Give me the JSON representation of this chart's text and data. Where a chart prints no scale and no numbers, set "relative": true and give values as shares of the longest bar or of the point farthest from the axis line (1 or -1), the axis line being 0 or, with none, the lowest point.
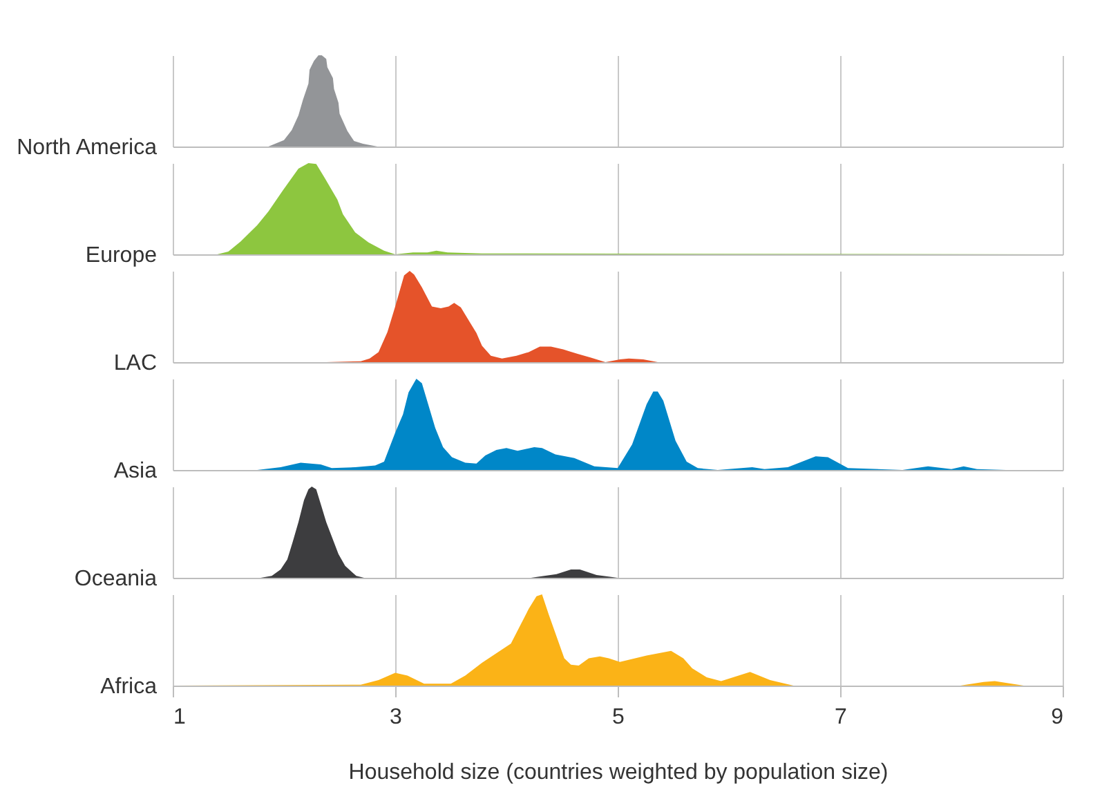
{
  "chart_data": [
    {
      "type": "area",
      "ylabel": "North America",
      "relative": true,
      "xlim": [
        1,
        9
      ],
      "xticks": [
        1,
        3,
        5,
        7,
        9
      ],
      "grid": "x",
      "tick_labels": false,
      "series": [
        {
          "color": "#939598",
          "x": [
            1.86,
            2.0,
            2.07,
            2.13,
            2.17,
            2.22,
            2.23,
            2.27,
            2.31,
            2.34,
            2.38,
            2.39,
            2.44,
            2.45,
            2.49,
            2.5,
            2.57,
            2.63,
            2.71,
            2.84
          ],
          "values": [
            0,
            0.07,
            0.18,
            0.34,
            0.51,
            0.69,
            0.84,
            0.94,
            1,
            1,
            0.96,
            0.87,
            0.75,
            0.63,
            0.48,
            0.36,
            0.17,
            0.06,
            0.03,
            0
          ]
        }
      ]
    },
    {
      "type": "area",
      "ylabel": "Europe",
      "relative": true,
      "xlim": [
        1,
        9
      ],
      "xticks": [
        1,
        3,
        5,
        7,
        9
      ],
      "grid": "x",
      "tick_labels": false,
      "series": [
        {
          "color": "#8dc63f",
          "x": [
            1.4,
            1.5,
            1.61,
            1.76,
            1.86,
            1.99,
            2.13,
            2.22,
            2.29,
            2.37,
            2.48,
            2.53,
            2.64,
            2.76,
            2.9,
            3.0,
            3.16,
            3.29,
            3.37,
            3.47,
            3.78,
            9.0
          ],
          "values": [
            0,
            0.03,
            0.14,
            0.32,
            0.47,
            0.7,
            0.94,
            1,
            0.99,
            0.83,
            0.6,
            0.44,
            0.24,
            0.13,
            0.04,
            0,
            0.02,
            0.02,
            0.04,
            0.02,
            0.01,
            0
          ]
        }
      ]
    },
    {
      "type": "area",
      "ylabel": "LAC",
      "relative": true,
      "xlim": [
        1,
        9
      ],
      "xticks": [
        1,
        3,
        5,
        7,
        9
      ],
      "grid": "x",
      "tick_labels": false,
      "series": [
        {
          "color": "#e5532a",
          "x": [
            2.38,
            2.69,
            2.77,
            2.85,
            2.93,
            3.0,
            3.08,
            3.13,
            3.17,
            3.24,
            3.33,
            3.41,
            3.48,
            3.53,
            3.59,
            3.67,
            3.73,
            3.78,
            3.86,
            3.96,
            4.09,
            4.2,
            4.3,
            4.4,
            4.51,
            4.64,
            4.76,
            4.89,
            5.02,
            5.1,
            5.23,
            5.36
          ],
          "values": [
            0,
            0.01,
            0.04,
            0.11,
            0.33,
            0.61,
            0.95,
            1,
            0.96,
            0.82,
            0.61,
            0.59,
            0.61,
            0.65,
            0.6,
            0.44,
            0.32,
            0.18,
            0.07,
            0.04,
            0.07,
            0.11,
            0.17,
            0.17,
            0.14,
            0.09,
            0.05,
            0,
            0.03,
            0.04,
            0.03,
            0
          ]
        }
      ]
    },
    {
      "type": "area",
      "ylabel": "Asia",
      "relative": true,
      "xlim": [
        1,
        9
      ],
      "xticks": [
        1,
        3,
        5,
        7,
        9
      ],
      "grid": "x",
      "tick_labels": false,
      "series": [
        {
          "color": "#0087c8",
          "x": [
            1.76,
            1.97,
            2.15,
            2.33,
            2.43,
            2.64,
            2.82,
            2.9,
            3.0,
            3.07,
            3.12,
            3.19,
            3.24,
            3.36,
            3.43,
            3.51,
            3.63,
            3.73,
            3.81,
            3.91,
            4.0,
            4.1,
            4.25,
            4.32,
            4.44,
            4.61,
            4.79,
            5.0,
            5.13,
            5.26,
            5.32,
            5.36,
            5.41,
            5.52,
            5.62,
            5.72,
            5.9,
            6.21,
            6.32,
            6.53,
            6.78,
            6.89,
            7.07,
            7.56,
            7.79,
            8.0,
            8.11,
            8.23,
            8.49,
            9.0
          ],
          "values": [
            0,
            0.03,
            0.08,
            0.06,
            0.02,
            0.03,
            0.05,
            0.09,
            0.41,
            0.61,
            0.85,
            1,
            0.95,
            0.46,
            0.25,
            0.14,
            0.08,
            0.07,
            0.16,
            0.22,
            0.24,
            0.21,
            0.25,
            0.24,
            0.17,
            0.13,
            0.04,
            0.02,
            0.28,
            0.72,
            0.86,
            0.86,
            0.76,
            0.32,
            0.09,
            0.02,
            0,
            0.03,
            0.01,
            0.03,
            0.15,
            0.14,
            0.02,
            0,
            0.04,
            0.01,
            0.04,
            0.01,
            0,
            0
          ]
        }
      ]
    },
    {
      "type": "area",
      "ylabel": "Oceania",
      "relative": true,
      "xlim": [
        1,
        9
      ],
      "xticks": [
        1,
        3,
        5,
        7,
        9
      ],
      "grid": "x",
      "tick_labels": false,
      "series": [
        {
          "color": "#3d3d3f",
          "x": [
            1.79,
            1.89,
            1.97,
            2.03,
            2.08,
            2.13,
            2.18,
            2.22,
            2.25,
            2.29,
            2.34,
            2.38,
            2.43,
            2.49,
            2.55,
            2.65,
            2.72,
            4.22,
            4.45,
            4.58,
            4.66,
            4.81,
            5.0
          ],
          "values": [
            0,
            0.02,
            0.09,
            0.2,
            0.4,
            0.61,
            0.85,
            0.97,
            1,
            0.97,
            0.77,
            0.61,
            0.45,
            0.26,
            0.13,
            0.02,
            0,
            0,
            0.04,
            0.09,
            0.09,
            0.03,
            0
          ]
        }
      ]
    },
    {
      "type": "area",
      "ylabel": "Africa",
      "xlabel": "Household size (countries weighted by population size)",
      "relative": true,
      "xlim": [
        1,
        9
      ],
      "xticks": [
        1,
        3,
        5,
        7,
        9
      ],
      "grid": "x",
      "tick_labels": "x",
      "series": [
        {
          "color": "#fbb317",
          "x": [
            1.0,
            2.69,
            2.85,
            3.0,
            3.11,
            3.26,
            3.5,
            3.63,
            3.78,
            4.04,
            4.2,
            4.27,
            4.32,
            4.38,
            4.52,
            4.58,
            4.65,
            4.74,
            4.84,
            4.92,
            5.02,
            5.26,
            5.48,
            5.59,
            5.67,
            5.8,
            5.93,
            6.19,
            6.37,
            6.58,
            8.08,
            8.29,
            8.39,
            8.65
          ],
          "values": [
            0,
            0.01,
            0.06,
            0.14,
            0.11,
            0.02,
            0.02,
            0.11,
            0.25,
            0.46,
            0.84,
            0.98,
            1,
            0.78,
            0.3,
            0.23,
            0.22,
            0.3,
            0.32,
            0.3,
            0.26,
            0.33,
            0.38,
            0.3,
            0.19,
            0.09,
            0.05,
            0.15,
            0.06,
            0,
            0,
            0.04,
            0.05,
            0
          ]
        }
      ]
    }
  ]
}
